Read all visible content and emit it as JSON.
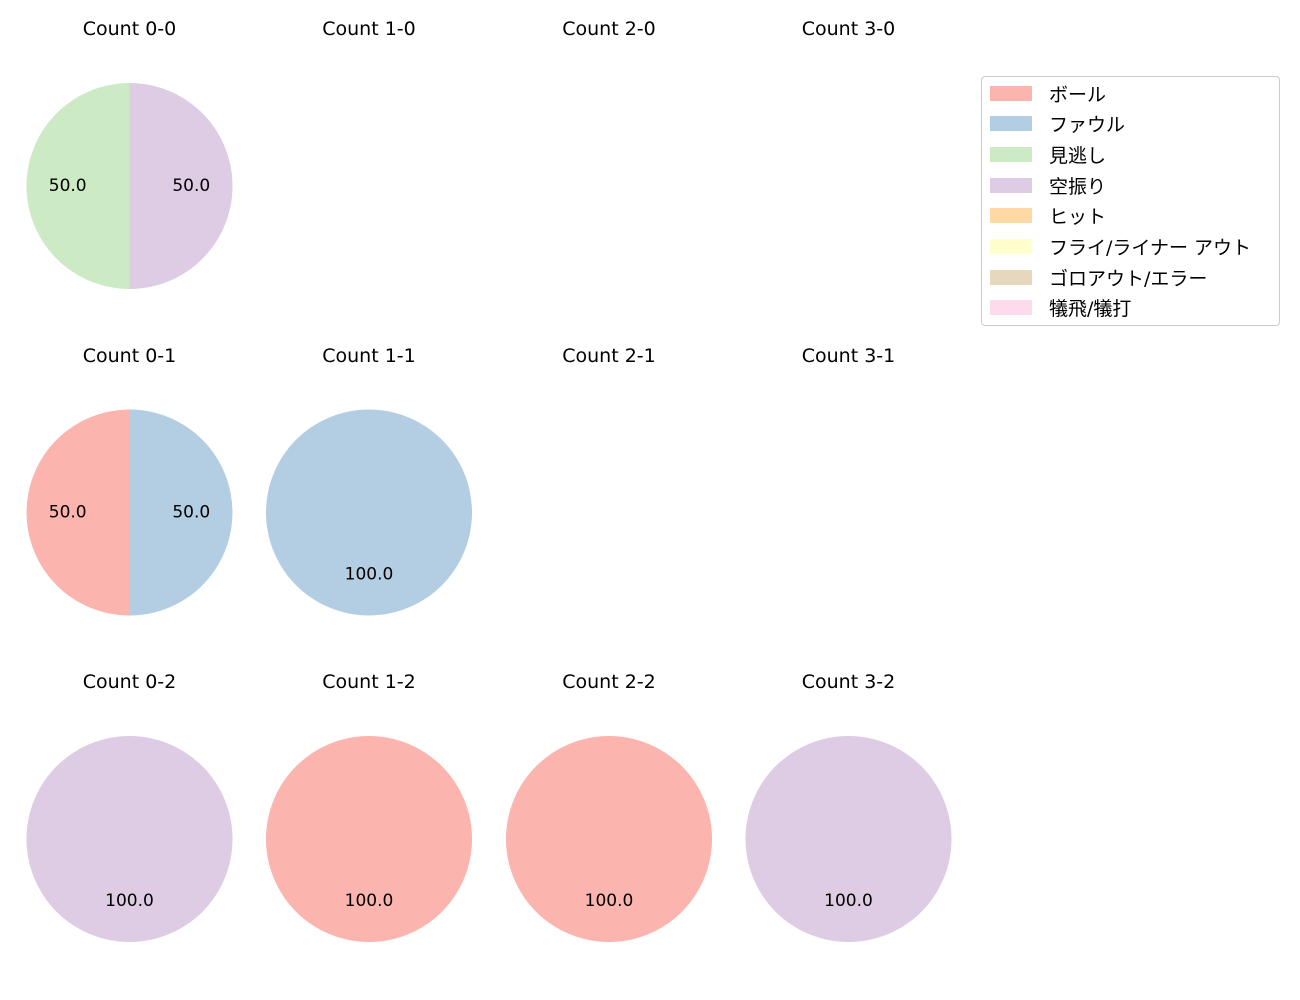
{
  "chart_data": {
    "type": "pie",
    "legend": {
      "placement": "top-right",
      "entries": [
        {
          "label": "ボール",
          "color": "#fbb4ae"
        },
        {
          "label": "ファウル",
          "color": "#b3cde3"
        },
        {
          "label": "見逃し",
          "color": "#ccebc5"
        },
        {
          "label": "空振り",
          "color": "#decbe4"
        },
        {
          "label": "ヒット",
          "color": "#fed9a6"
        },
        {
          "label": "フライ/ライナー アウト",
          "color": "#ffffcc"
        },
        {
          "label": "ゴロアウト/エラー",
          "color": "#e5d8bd"
        },
        {
          "label": "犠飛/犠打",
          "color": "#fddaec"
        }
      ]
    },
    "charts": [
      {
        "title": "Count 0-0",
        "slices": [
          {
            "category": "見逃し",
            "value": 50.0,
            "label": "50.0"
          },
          {
            "category": "空振り",
            "value": 50.0,
            "label": "50.0"
          }
        ]
      },
      {
        "title": "Count 1-0",
        "slices": []
      },
      {
        "title": "Count 2-0",
        "slices": []
      },
      {
        "title": "Count 3-0",
        "slices": []
      },
      {
        "title": "Count 0-1",
        "slices": [
          {
            "category": "ボール",
            "value": 50.0,
            "label": "50.0"
          },
          {
            "category": "ファウル",
            "value": 50.0,
            "label": "50.0"
          }
        ]
      },
      {
        "title": "Count 1-1",
        "slices": [
          {
            "category": "ファウル",
            "value": 100.0,
            "label": "100.0"
          }
        ]
      },
      {
        "title": "Count 2-1",
        "slices": []
      },
      {
        "title": "Count 3-1",
        "slices": []
      },
      {
        "title": "Count 0-2",
        "slices": [
          {
            "category": "空振り",
            "value": 100.0,
            "label": "100.0"
          }
        ]
      },
      {
        "title": "Count 1-2",
        "slices": [
          {
            "category": "ボール",
            "value": 100.0,
            "label": "100.0"
          }
        ]
      },
      {
        "title": "Count 2-2",
        "slices": [
          {
            "category": "ボール",
            "value": 100.0,
            "label": "100.0"
          }
        ]
      },
      {
        "title": "Count 3-2",
        "slices": [
          {
            "category": "空振り",
            "value": 100.0,
            "label": "100.0"
          }
        ]
      }
    ]
  }
}
